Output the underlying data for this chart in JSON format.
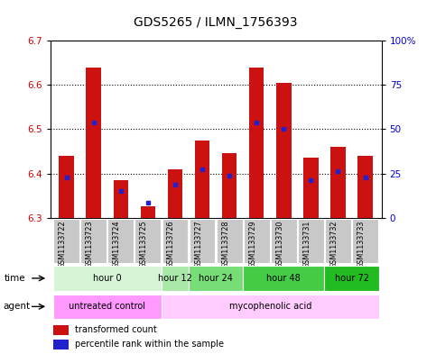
{
  "title": "GDS5265 / ILMN_1756393",
  "samples": [
    "GSM1133722",
    "GSM1133723",
    "GSM1133724",
    "GSM1133725",
    "GSM1133726",
    "GSM1133727",
    "GSM1133728",
    "GSM1133729",
    "GSM1133730",
    "GSM1133731",
    "GSM1133732",
    "GSM1133733"
  ],
  "red_values": [
    6.44,
    6.64,
    6.385,
    6.325,
    6.41,
    6.475,
    6.445,
    6.64,
    6.605,
    6.435,
    6.46,
    6.44
  ],
  "blue_values": [
    6.39,
    6.515,
    6.36,
    6.335,
    6.375,
    6.41,
    6.395,
    6.515,
    6.5,
    6.385,
    6.405,
    6.39
  ],
  "y_min": 6.3,
  "y_max": 6.7,
  "y_ticks": [
    6.3,
    6.4,
    6.5,
    6.6,
    6.7
  ],
  "y2_labels": [
    "0",
    "25",
    "50",
    "75",
    "100%"
  ],
  "time_groups": [
    {
      "label": "hour 0",
      "start": 0,
      "end": 3,
      "color": "#d6f5d6"
    },
    {
      "label": "hour 12",
      "start": 4,
      "end": 4,
      "color": "#aae8aa"
    },
    {
      "label": "hour 24",
      "start": 5,
      "end": 6,
      "color": "#77dd77"
    },
    {
      "label": "hour 48",
      "start": 7,
      "end": 9,
      "color": "#44cc44"
    },
    {
      "label": "hour 72",
      "start": 10,
      "end": 11,
      "color": "#22bb22"
    }
  ],
  "agent_groups": [
    {
      "label": "untreated control",
      "start": 0,
      "end": 3,
      "color": "#ff99ff"
    },
    {
      "label": "mycophenolic acid",
      "start": 4,
      "end": 11,
      "color": "#ffccff"
    }
  ],
  "bar_width": 0.55,
  "bar_color": "#cc1111",
  "blue_color": "#2222cc",
  "sample_bg": "#c8c8c8",
  "y_tick_color": "#cc0000",
  "y2_tick_color": "#0000cc"
}
